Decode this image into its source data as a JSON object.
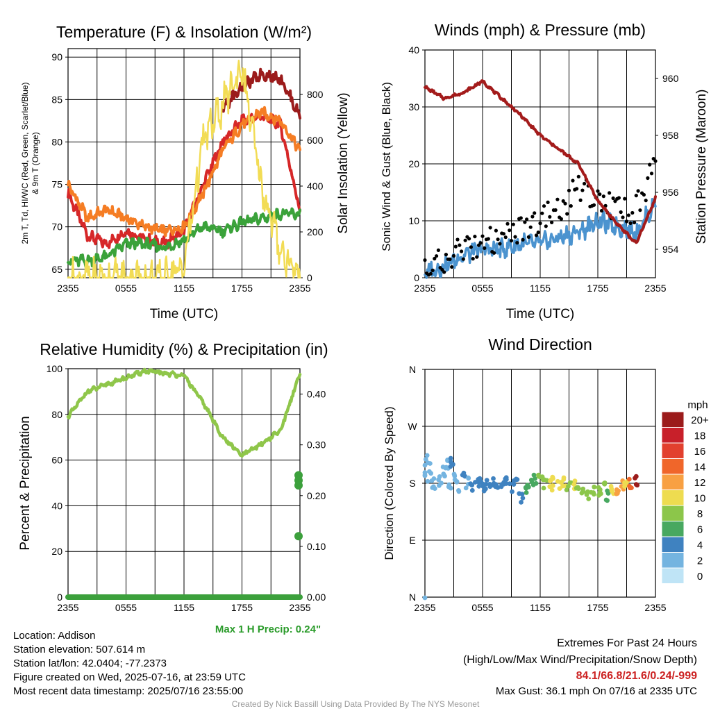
{
  "colors": {
    "temp": "#d62728",
    "tmax": "#9b1b1b",
    "dew": "#3aa23a",
    "t9m": "#f57d24",
    "solar": "#f2dc55",
    "wind": "#4b93cf",
    "gust": "#000000",
    "pressure": "#a31b1b",
    "rh": "#8fc64a",
    "precip": "#3ca03c",
    "max_precip_text": "#2a9b2a",
    "extremes_text": "#cc2222"
  },
  "panels": {
    "temperature": {
      "title": "Temperature (F) & Insolation (W/m²)",
      "ylabel_left_line1": "2m T, Td, HI/WC (Red, Green, Scarlet/Blue)",
      "ylabel_left_line2": "& 9m T (Orange)",
      "ylabel_right": "Solar Insolation (Yellow)",
      "xlabel": "Time (UTC)"
    },
    "winds": {
      "title": "Winds (mph) & Pressure (mb)",
      "ylabel_left": "Sonic Wind & Gust (Blue, Black)",
      "ylabel_right": "Station Pressure (Maroon)",
      "xlabel": "Time (UTC)"
    },
    "humidity": {
      "title": "Relative Humidity (%) & Precipitation (in)",
      "ylabel_left": "Percent & Precipitation",
      "max_precip": "Max 1 H Precip: 0.24\""
    },
    "direction": {
      "title": "Wind Direction",
      "ylabel_left": "Direction (Colored By Speed)",
      "legend_title": "mph",
      "legend_labels": [
        "20+",
        "18",
        "16",
        "14",
        "12",
        "10",
        "8",
        "6",
        "4",
        "2",
        "0"
      ],
      "legend_colors": [
        "#9b1b1b",
        "#c8202a",
        "#e2402e",
        "#f0662a",
        "#f8a042",
        "#eedc50",
        "#8cc64a",
        "#48a860",
        "#3f82c0",
        "#74b4e0",
        "#bfe4f6"
      ]
    }
  },
  "info": {
    "location": "Location: Addison",
    "elevation": "Station elevation: 507.614 m",
    "latlon": "Station lat/lon: 42.0404; -77.2373",
    "created": "Figure created on Wed, 2025-07-16, at 23:59 UTC",
    "recent": "Most recent data timestamp: 2025/07/16 23:55:00",
    "extremes_title": "Extremes For Past 24 Hours",
    "extremes_sub": "(High/Low/Max Wind/Precipitation/Snow Depth)",
    "extremes_values": "84.1/66.8/21.6/0.24/-999",
    "max_gust": "Max Gust: 36.1 mph On 07/16 at 2335 UTC",
    "credit": "Created By Nick Bassill Using Data Provided By The NYS Mesonet"
  },
  "chart_data": [
    {
      "type": "line",
      "title": "Temperature (F) & Insolation (W/m²)",
      "xlabel": "Time (UTC)",
      "xticks": [
        "2355",
        "0555",
        "1155",
        "1755",
        "2355"
      ],
      "x_hours": [
        0,
        2,
        4,
        6,
        8,
        10,
        12,
        14,
        16,
        18,
        20,
        22,
        24
      ],
      "ylim": [
        64,
        91
      ],
      "yticks": [
        65,
        70,
        75,
        80,
        85,
        90
      ],
      "y2lim": [
        0,
        1000
      ],
      "y2ticks": [
        0,
        200,
        400,
        600,
        800
      ],
      "series": [
        {
          "name": "2m T",
          "axis": "left",
          "color": "#d62728",
          "values": [
            74,
            69,
            68,
            69.5,
            68.5,
            68,
            69.5,
            75,
            80,
            82.5,
            83,
            82,
            72
          ]
        },
        {
          "name": "9m T",
          "axis": "left",
          "color": "#f57d24",
          "values": [
            75,
            71,
            72,
            71,
            70,
            69.5,
            70,
            74,
            79,
            82,
            83.5,
            82.5,
            79
          ]
        },
        {
          "name": "Td",
          "axis": "left",
          "color": "#3aa23a",
          "values": [
            66,
            66,
            66.5,
            68,
            68,
            67.5,
            68.5,
            70,
            69.5,
            70.5,
            71,
            71.5,
            71.5
          ]
        },
        {
          "name": "HI/WC",
          "axis": "left",
          "color": "#9b1b1b",
          "values": [
            null,
            null,
            null,
            null,
            null,
            null,
            null,
            null,
            84,
            86.5,
            88,
            87.5,
            83
          ]
        },
        {
          "name": "Solar Insolation",
          "axis": "right",
          "color": "#f2dc55",
          "values": [
            0,
            0,
            0,
            0,
            0,
            0,
            50,
            600,
            750,
            920,
            400,
            120,
            0
          ]
        }
      ]
    },
    {
      "type": "line",
      "title": "Winds (mph) & Pressure (mb)",
      "xlabel": "Time (UTC)",
      "xticks": [
        "2355",
        "0555",
        "1155",
        "1755",
        "2355"
      ],
      "x_hours": [
        0,
        2,
        4,
        6,
        8,
        10,
        12,
        14,
        16,
        18,
        20,
        22,
        24
      ],
      "ylim": [
        0,
        40
      ],
      "yticks": [
        0,
        10,
        20,
        30,
        40
      ],
      "y2lim": [
        953,
        961
      ],
      "y2ticks": [
        954,
        956,
        958,
        960
      ],
      "series": [
        {
          "name": "Sonic Wind",
          "axis": "left",
          "color": "#4b93cf",
          "values": [
            1,
            2,
            4,
            5,
            5,
            6,
            6,
            7,
            8,
            10,
            9,
            8,
            13
          ]
        },
        {
          "name": "Gust",
          "axis": "left",
          "color": "#000000",
          "values": [
            1,
            3,
            5,
            6,
            7,
            9,
            10,
            12,
            16,
            14,
            12,
            12,
            20
          ]
        },
        {
          "name": "Station Pressure",
          "axis": "right",
          "color": "#a31b1b",
          "values": [
            959.7,
            959.3,
            959.5,
            959.9,
            959.3,
            958.7,
            958.0,
            957.5,
            957.0,
            955.7,
            954.9,
            954.2,
            955.8
          ]
        }
      ]
    },
    {
      "type": "line",
      "title": "Relative Humidity (%) & Precipitation (in)",
      "xticks": [
        "2355",
        "0555",
        "1155",
        "1755",
        "2355"
      ],
      "x_hours": [
        0,
        2,
        4,
        6,
        8,
        10,
        12,
        14,
        16,
        18,
        20,
        22,
        24
      ],
      "ylim": [
        0,
        100
      ],
      "yticks": [
        0,
        20,
        40,
        60,
        80,
        100
      ],
      "y2lim": [
        0,
        0.45
      ],
      "y2ticks": [
        "0.00",
        "0.10",
        "0.20",
        "0.30",
        "0.40"
      ],
      "series": [
        {
          "name": "Relative Humidity",
          "axis": "left",
          "color": "#8fc64a",
          "values": [
            79,
            90,
            93,
            96,
            99,
            98,
            97,
            85,
            70,
            62,
            67,
            73,
            98
          ]
        },
        {
          "name": "Precipitation",
          "axis": "right",
          "color": "#3ca03c",
          "values": [
            0,
            0,
            0,
            0,
            0,
            0,
            0,
            0,
            0,
            0,
            0,
            0,
            0.24
          ]
        }
      ],
      "precip_points": [
        [
          24,
          0.12
        ],
        [
          24,
          0.22
        ],
        [
          24,
          0.23
        ],
        [
          24,
          0.24
        ]
      ]
    },
    {
      "type": "scatter",
      "title": "Wind Direction",
      "ylabel": "Direction (Colored By Speed)",
      "xticks": [
        "2355",
        "0555",
        "1155",
        "1755",
        "2355"
      ],
      "yticks": [
        "N",
        "E",
        "S",
        "W",
        "N"
      ],
      "ylim": [
        0,
        360
      ],
      "points": [
        [
          0,
          200,
          1
        ],
        [
          0.5,
          190,
          1
        ],
        [
          1,
          180,
          1
        ],
        [
          1.5,
          185,
          1
        ],
        [
          2,
          200,
          2
        ],
        [
          2.5,
          180,
          1
        ],
        [
          3,
          190,
          2
        ],
        [
          3.5,
          175,
          1
        ],
        [
          4,
          190,
          3
        ],
        [
          4.5,
          180,
          2
        ],
        [
          5,
          175,
          3
        ],
        [
          5.5,
          180,
          3
        ],
        [
          6,
          175,
          4
        ],
        [
          6.5,
          178,
          3
        ],
        [
          7,
          180,
          4
        ],
        [
          7.5,
          172,
          4
        ],
        [
          8,
          178,
          4
        ],
        [
          8.5,
          180,
          4
        ],
        [
          9,
          175,
          4
        ],
        [
          9.5,
          178,
          4
        ],
        [
          10,
          155,
          4
        ],
        [
          10.5,
          170,
          5
        ],
        [
          11,
          180,
          5
        ],
        [
          11.5,
          185,
          6
        ],
        [
          12,
          188,
          7
        ],
        [
          12.5,
          180,
          7
        ],
        [
          13,
          178,
          9
        ],
        [
          13.5,
          182,
          10
        ],
        [
          14,
          175,
          9
        ],
        [
          14.5,
          180,
          9
        ],
        [
          15,
          178,
          8
        ],
        [
          15.5,
          176,
          9
        ],
        [
          16,
          172,
          8
        ],
        [
          16.5,
          168,
          7
        ],
        [
          17,
          162,
          7
        ],
        [
          17.5,
          170,
          8
        ],
        [
          18,
          165,
          7
        ],
        [
          18.5,
          172,
          8
        ],
        [
          19,
          160,
          6
        ],
        [
          19.5,
          168,
          9
        ],
        [
          20,
          172,
          11
        ],
        [
          20.5,
          175,
          12
        ],
        [
          21,
          178,
          10
        ],
        [
          21.5,
          180,
          13
        ],
        [
          22,
          182,
          21
        ],
        [
          2.2,
          210,
          2
        ],
        [
          2.8,
          215,
          3
        ],
        [
          0.3,
          220,
          1
        ],
        [
          0,
          0,
          1
        ]
      ]
    }
  ]
}
